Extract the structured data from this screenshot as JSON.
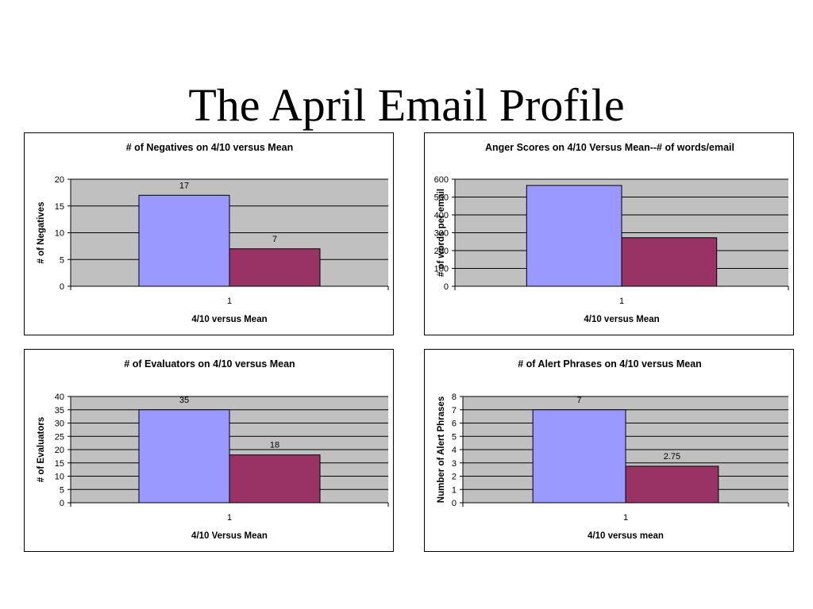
{
  "slide": {
    "title": "The April Email Profile"
  },
  "colors": {
    "series_a": "#9999ff",
    "series_b": "#993366",
    "plot_bg": "#c0c0c0",
    "grid": "#000000"
  },
  "chart_data": [
    {
      "type": "bar",
      "title": "# of Negatives on 4/10 versus Mean",
      "xlabel": "4/10 versus Mean",
      "ylabel": "# of Negatives",
      "categories": [
        "1"
      ],
      "series": [
        {
          "values": [
            17
          ]
        },
        {
          "values": [
            7
          ]
        }
      ],
      "data_labels": [
        "17",
        "7"
      ],
      "ylim": [
        0,
        20
      ],
      "yticks": [
        0,
        5,
        10,
        15,
        20
      ],
      "grid": true
    },
    {
      "type": "bar",
      "title": "Anger Scores on 4/10 Versus Mean--# of words/email",
      "xlabel": "4/10 versus Mean",
      "ylabel": "# of words per email",
      "categories": [
        "1"
      ],
      "series": [
        {
          "values": [
            565
          ]
        },
        {
          "values": [
            272
          ]
        }
      ],
      "data_labels": [],
      "ylim": [
        0,
        600
      ],
      "yticks": [
        0,
        100,
        200,
        300,
        400,
        500,
        600
      ],
      "grid": true
    },
    {
      "type": "bar",
      "title": "# of Evaluators on 4/10 versus Mean",
      "xlabel": "4/10 Versus Mean",
      "ylabel": "# of Evaluators",
      "categories": [
        "1"
      ],
      "series": [
        {
          "values": [
            35
          ]
        },
        {
          "values": [
            18
          ]
        }
      ],
      "data_labels": [
        "35",
        "18"
      ],
      "ylim": [
        0,
        40
      ],
      "yticks": [
        0,
        5,
        10,
        15,
        20,
        25,
        30,
        35,
        40
      ],
      "grid": true
    },
    {
      "type": "bar",
      "title": "# of Alert Phrases on 4/10 versus Mean",
      "xlabel": "4/10 versus mean",
      "ylabel": "Number of Alert Phrases",
      "categories": [
        "1"
      ],
      "series": [
        {
          "values": [
            7
          ]
        },
        {
          "values": [
            2.75
          ]
        }
      ],
      "data_labels": [
        "7",
        "2.75"
      ],
      "ylim": [
        0,
        8
      ],
      "yticks": [
        0,
        1,
        2,
        3,
        4,
        5,
        6,
        7,
        8
      ],
      "grid": true
    }
  ]
}
